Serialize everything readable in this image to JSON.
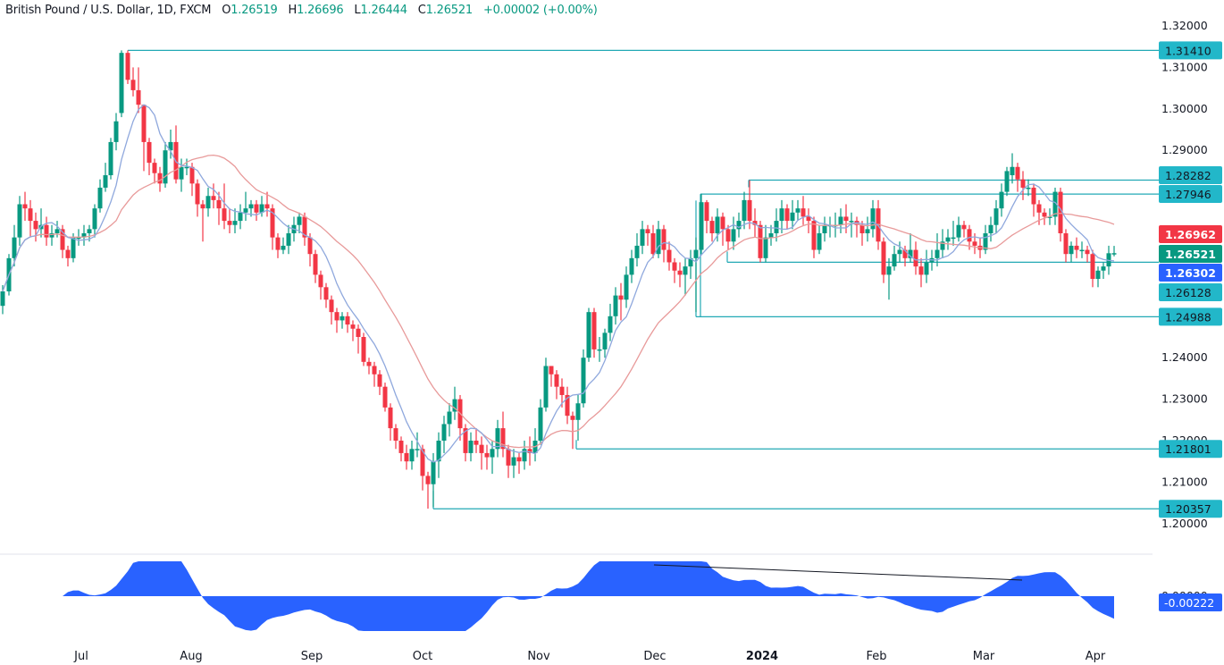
{
  "legend": {
    "symbol": "British Pound / U.S. Dollar, 1D, FXCM",
    "open_label": "O",
    "open": "1.26519",
    "high_label": "H",
    "high": "1.26696",
    "low_label": "L",
    "low": "1.26444",
    "close_label": "C",
    "close": "1.26521",
    "change": "+0.00002 (+0.00%)"
  },
  "colors": {
    "up": "#089981",
    "down": "#f23645",
    "level_line": "#22a9b5",
    "level_tag": "#22b7c9",
    "ma_fast": "#7f9fd9",
    "ma_slow": "#e89a9a",
    "osc": "#2962ff",
    "tag_red": "#f23645",
    "tag_green": "#089981",
    "tag_blue": "#2962ff"
  },
  "chart_data": {
    "type": "candlestick",
    "title": "British Pound / U.S. Dollar, 1D, FXCM",
    "ylim": [
      1.195,
      1.3245
    ],
    "y_ticks": [
      "1.32000",
      "1.31000",
      "1.30000",
      "1.29000",
      "1.24000",
      "1.23000",
      "1.22000",
      "1.21000",
      "1.20000"
    ],
    "x_ticks": [
      "Jul",
      "Aug",
      "Sep",
      "Oct",
      "Nov",
      "Dec",
      "2024",
      "Feb",
      "Mar",
      "Apr"
    ],
    "price_tags": [
      {
        "value": "1.31410",
        "style": "level"
      },
      {
        "value": "1.28282",
        "style": "level"
      },
      {
        "value": "1.27946",
        "style": "level"
      },
      {
        "value": "1.26962",
        "style": "red"
      },
      {
        "value": "1.26521",
        "style": "green"
      },
      {
        "value": "1.26302",
        "style": "blue"
      },
      {
        "value": "1.26128",
        "style": "level"
      },
      {
        "value": "1.24988",
        "style": "level"
      },
      {
        "value": "1.21801",
        "style": "level"
      },
      {
        "value": "1.20357",
        "style": "level"
      }
    ],
    "horizontal_levels": [
      {
        "price": 1.3141,
        "x_start": 143
      },
      {
        "price": 1.28282,
        "x_start": 838
      },
      {
        "price": 1.27946,
        "x_start": 784
      },
      {
        "price": 1.26302,
        "x_start": 814
      },
      {
        "price": 1.24988,
        "x_start": 779
      },
      {
        "price": 1.21801,
        "x_start": 645
      },
      {
        "price": 1.20357,
        "x_start": 485
      }
    ],
    "oscillator": {
      "last_value": "-0.00222",
      "zero_label": "0.00000"
    },
    "candles_ohlc_sample": [
      {
        "date": "2023-07-13",
        "o": 1.2995,
        "h": 1.3141,
        "l": 1.2985,
        "c": 1.3135
      },
      {
        "date": "2023-10-04",
        "o": 1.2115,
        "h": 1.2125,
        "l": 1.2036,
        "c": 1.2095
      },
      {
        "date": "2023-12-28",
        "o": 1.278,
        "h": 1.2828,
        "l": 1.271,
        "c": 1.273
      },
      {
        "date": "2024-03-08",
        "o": 1.284,
        "h": 1.2893,
        "l": 1.281,
        "c": 1.286
      },
      {
        "date": "2024-04-05",
        "o": 1.26519,
        "h": 1.26696,
        "l": 1.26444,
        "c": 1.26521
      }
    ]
  }
}
